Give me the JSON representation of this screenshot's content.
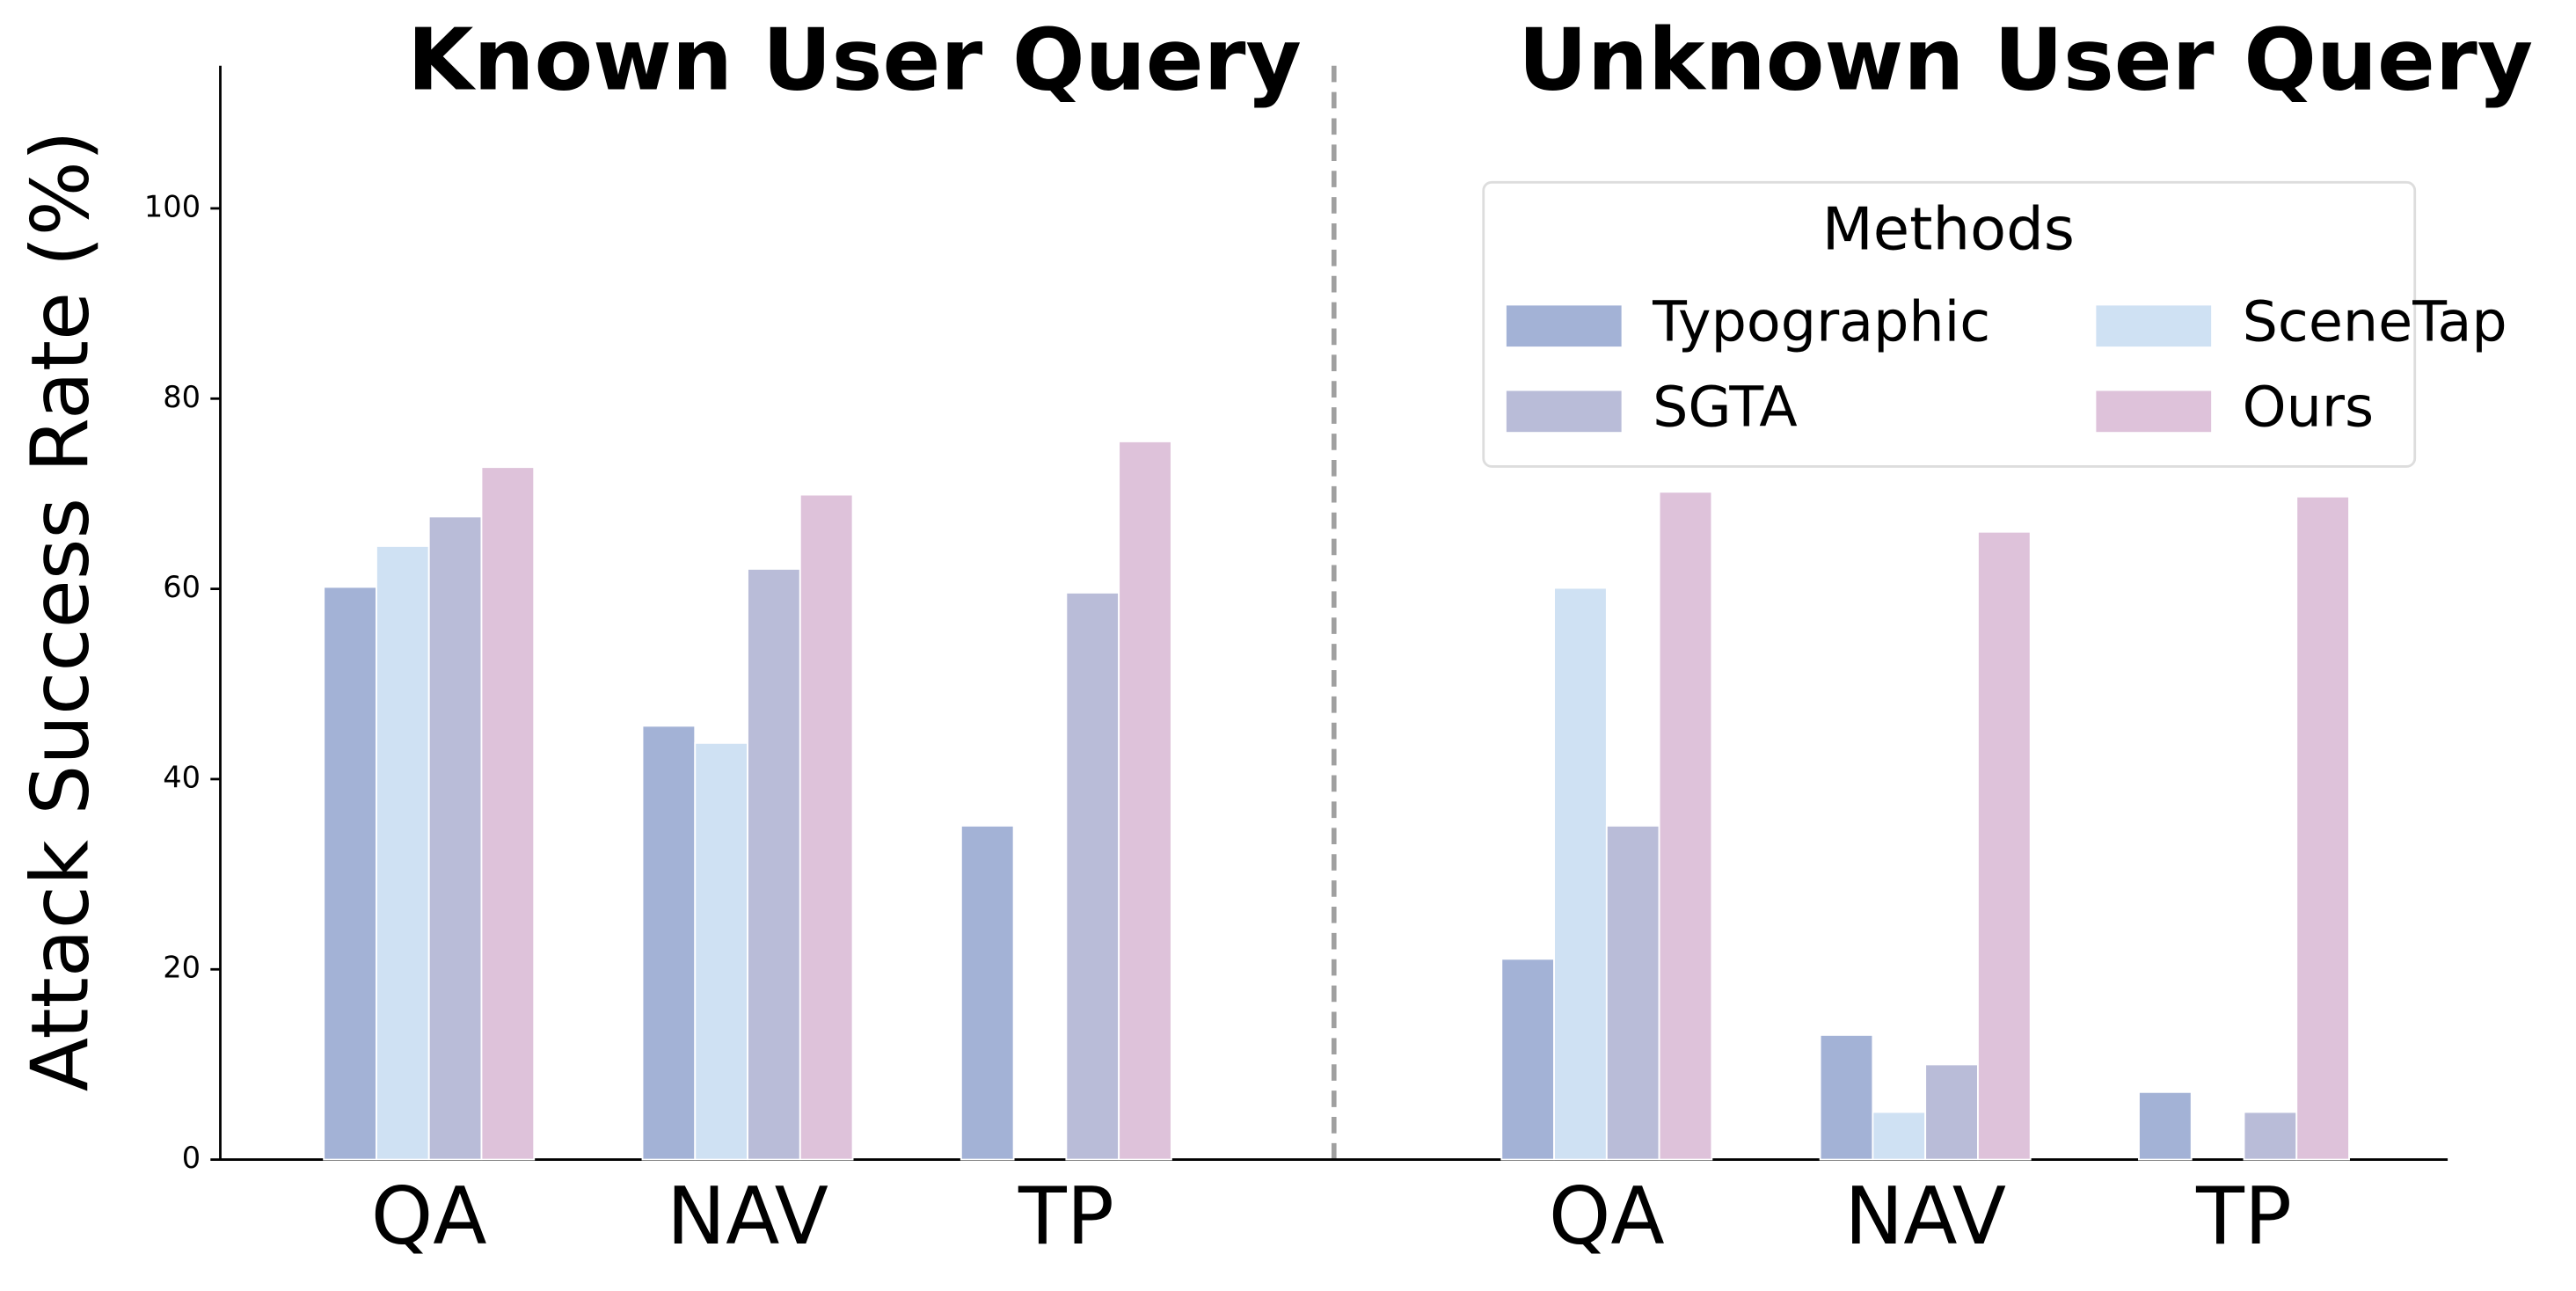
{
  "chart_data": {
    "type": "bar",
    "group_titles": [
      "Known User Query",
      "Unknown User Query"
    ],
    "ylabel": "Attack Success Rate (%)",
    "categories": [
      "QA",
      "NAV",
      "TP",
      "QA",
      "NAV",
      "TP"
    ],
    "series": [
      {
        "name": "Typographic",
        "color": "#a3b2d6",
        "values": [
          60.2,
          45.6,
          35.1,
          21.1,
          13.1,
          7.1
        ]
      },
      {
        "name": "SceneTap",
        "color": "#cfe1f3",
        "values": [
          64.5,
          43.8,
          0,
          60.1,
          5.0,
          0
        ]
      },
      {
        "name": "SGTA",
        "color": "#b9bcd8",
        "values": [
          67.6,
          62.1,
          59.6,
          35.1,
          10.0,
          5.0
        ]
      },
      {
        "name": "Ours",
        "color": "#dec2da",
        "values": [
          72.8,
          69.9,
          75.5,
          70.2,
          66.0,
          69.7
        ]
      }
    ],
    "ylim": [
      0,
      115
    ],
    "yticks": [
      0,
      20,
      40,
      60,
      80,
      100
    ],
    "legend_title": "Methods",
    "legend_position": "upper right"
  }
}
